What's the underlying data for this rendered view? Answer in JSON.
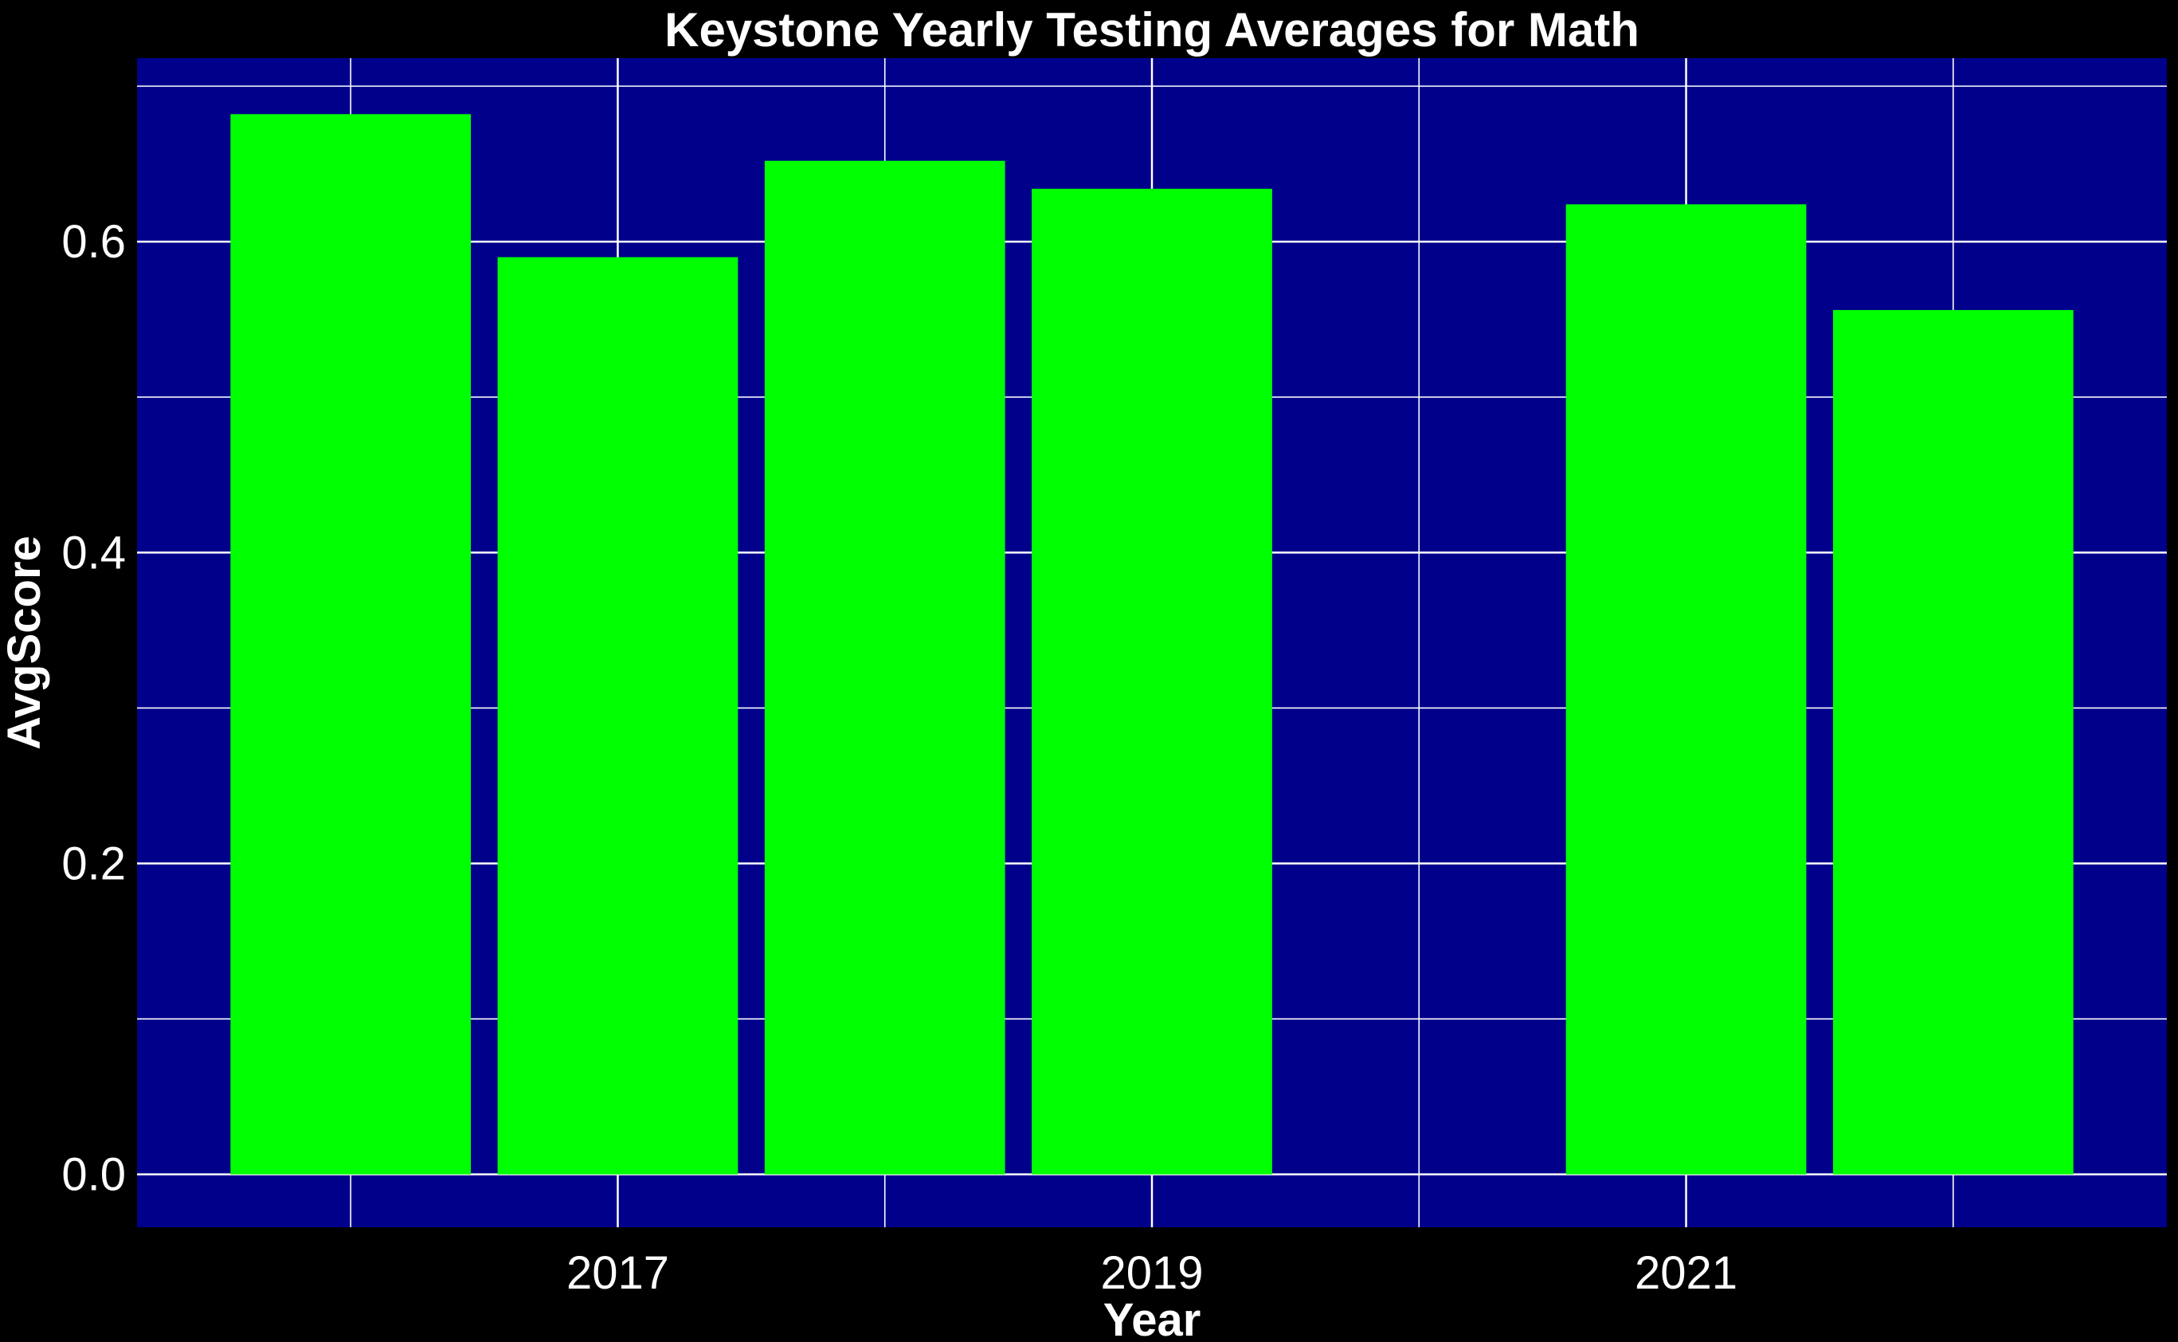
{
  "chart_data": {
    "type": "bar",
    "title": "Keystone Yearly Testing Averages for Math",
    "xlabel": "Year",
    "ylabel": "AvgScore",
    "x": [
      2016,
      2017,
      2018,
      2019,
      2021,
      2022
    ],
    "values": [
      0.682,
      0.59,
      0.652,
      0.634,
      0.624,
      0.556
    ],
    "xlim": [
      2015.2,
      2022.8
    ],
    "ylim": [
      -0.034,
      0.718
    ],
    "x_ticks": [
      2017,
      2019,
      2021
    ],
    "x_tick_labels": [
      "2017",
      "2019",
      "2021"
    ],
    "y_ticks": [
      0.0,
      0.2,
      0.4,
      0.6
    ],
    "y_tick_labels": [
      "0.0",
      "0.2",
      "0.4",
      "0.6"
    ],
    "grid": true,
    "colors": {
      "background": "#000000",
      "panel": "#00008b",
      "bar": "#00ff00",
      "grid": "#ffffff",
      "text": "#ffffff"
    }
  }
}
